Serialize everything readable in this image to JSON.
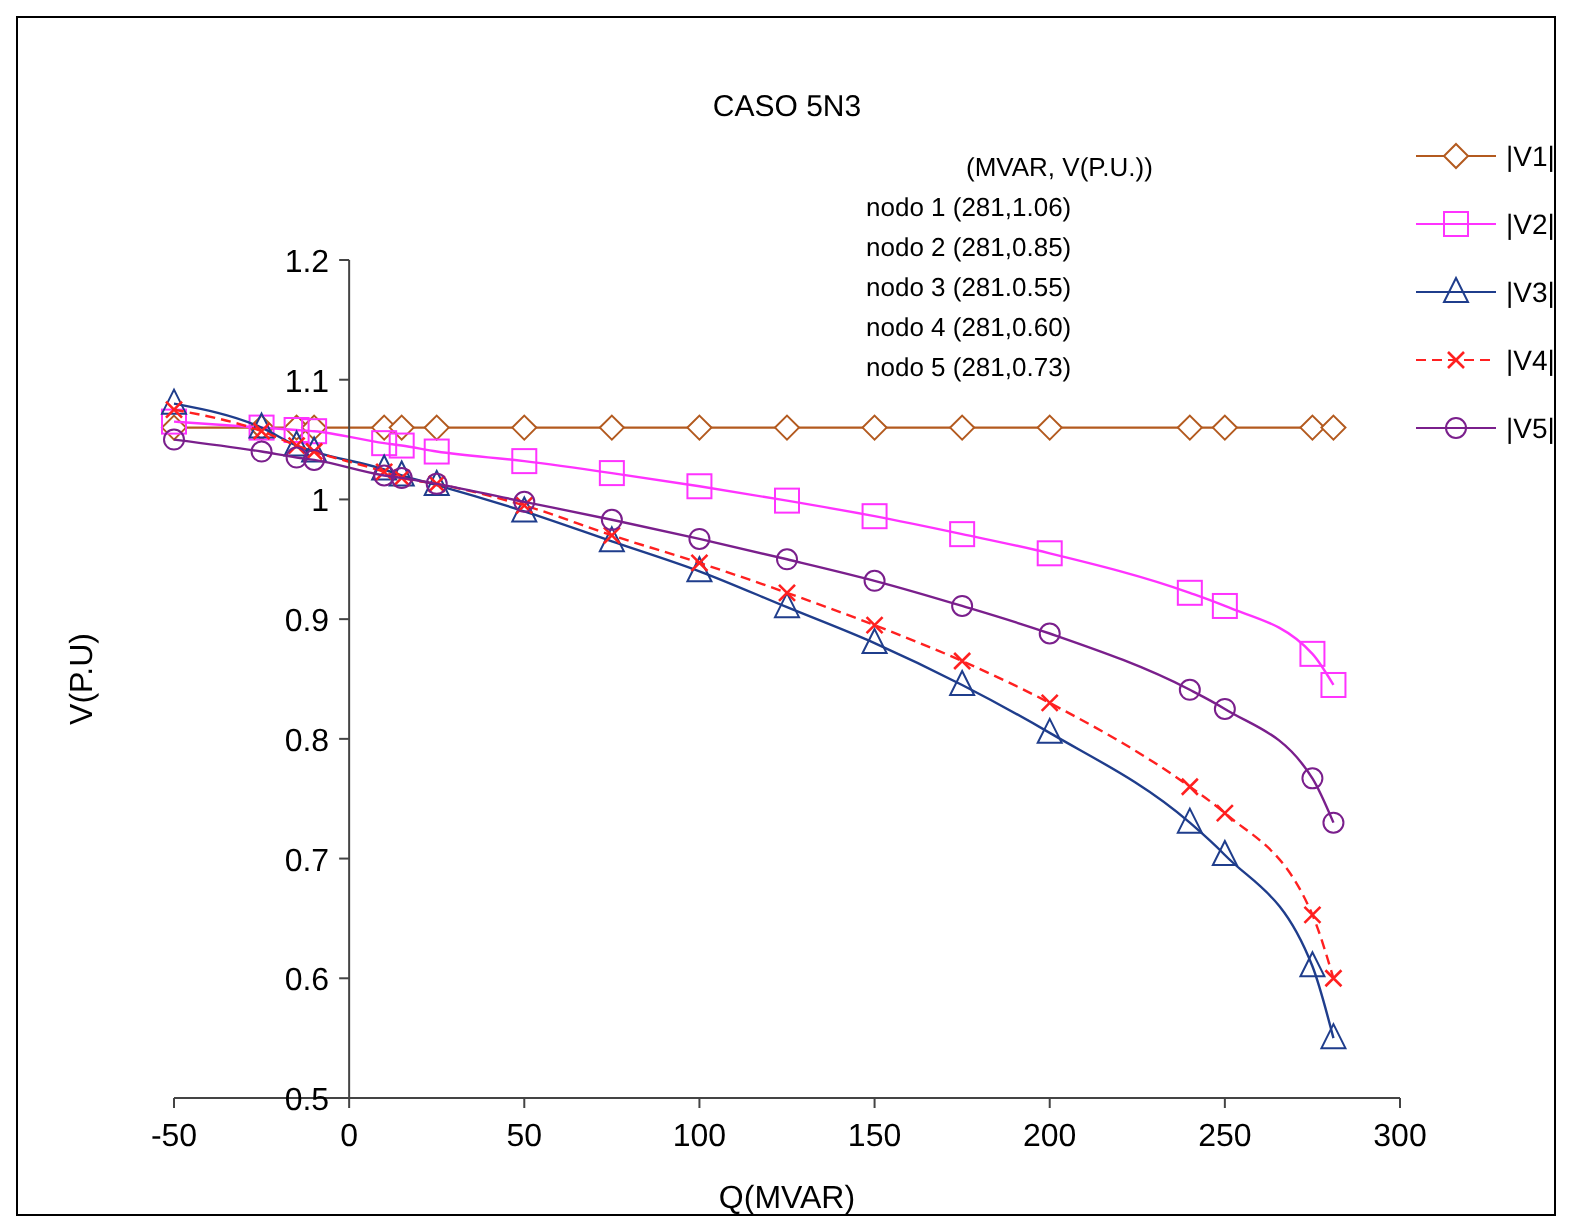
{
  "chart_data": {
    "type": "line",
    "title": "CASO 5N3",
    "xlabel": "Q(MVAR)",
    "ylabel": "V(P.U)",
    "x": [
      -50,
      -25,
      -15,
      -10,
      10,
      15,
      25,
      50,
      75,
      100,
      125,
      150,
      175,
      200,
      240,
      250,
      275,
      281
    ],
    "xlim": [
      -50,
      300
    ],
    "xticks": [
      -50,
      0,
      50,
      100,
      150,
      200,
      250,
      300
    ],
    "ylim": [
      0.5,
      1.2
    ],
    "yticks": [
      0.5,
      0.6,
      0.7,
      0.8,
      0.9,
      1,
      1.1,
      1.2
    ],
    "grid": false,
    "legend": "right",
    "annotations": [
      "(MVAR, V(P.U.))",
      "nodo 1 (281,1.06)",
      "nodo 2 (281,0.85)",
      "nodo 3 (281.0.55)",
      "nodo 4  (281,0.60)",
      "nodo 5 (281,0.73)"
    ],
    "series": [
      {
        "name": "|V1|",
        "color": "#b35a1f",
        "marker": "diamond",
        "line_style": "solid",
        "values": [
          1.06,
          1.06,
          1.06,
          1.06,
          1.06,
          1.06,
          1.06,
          1.06,
          1.06,
          1.06,
          1.06,
          1.06,
          1.06,
          1.06,
          1.06,
          1.06,
          1.06,
          1.06
        ]
      },
      {
        "name": "|V2|",
        "color": "#ff33ff",
        "marker": "square",
        "line_style": "solid",
        "values": [
          1.065,
          1.06,
          1.058,
          1.057,
          1.047,
          1.045,
          1.04,
          1.032,
          1.022,
          1.011,
          0.999,
          0.986,
          0.971,
          0.955,
          0.922,
          0.911,
          0.871,
          0.845
        ]
      },
      {
        "name": "|V3|",
        "color": "#1f3d8c",
        "marker": "triangle",
        "line_style": "solid",
        "values": [
          1.08,
          1.06,
          1.045,
          1.04,
          1.025,
          1.02,
          1.012,
          0.99,
          0.965,
          0.94,
          0.91,
          0.88,
          0.845,
          0.805,
          0.73,
          0.703,
          0.61,
          0.55
        ]
      },
      {
        "name": "|V4|",
        "color": "#ff2020",
        "marker": "cross",
        "line_style": "dashed",
        "values": [
          1.075,
          1.057,
          1.045,
          1.04,
          1.023,
          1.018,
          1.013,
          0.995,
          0.97,
          0.947,
          0.922,
          0.895,
          0.865,
          0.83,
          0.76,
          0.738,
          0.653,
          0.6
        ]
      },
      {
        "name": "|V5|",
        "color": "#7a1f8c",
        "marker": "circle",
        "line_style": "solid",
        "values": [
          1.05,
          1.04,
          1.035,
          1.033,
          1.02,
          1.018,
          1.013,
          0.998,
          0.983,
          0.967,
          0.95,
          0.932,
          0.911,
          0.888,
          0.841,
          0.825,
          0.767,
          0.73
        ]
      }
    ]
  }
}
